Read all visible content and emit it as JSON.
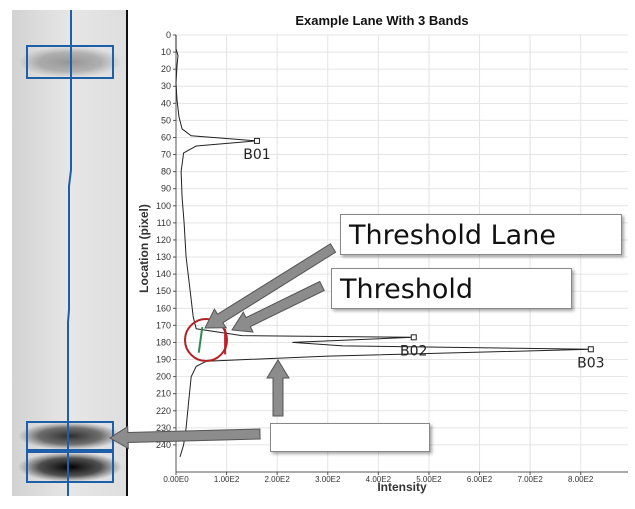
{
  "title": "Example Lane With 3 Bands",
  "colors": {
    "lane_line": "#1f5ea8",
    "trace": "#222222",
    "threshold_lane_mark": "#2e8b57",
    "threshold_mark": "#cc2233",
    "circle": "#b22222",
    "arrow_fill": "#8c8c8c",
    "grid": "#e4e4e4"
  },
  "callouts": {
    "threshold_lane": "Threshold Lane",
    "threshold": "Threshold",
    "empty": ""
  },
  "chart_data": {
    "type": "line",
    "title": "Example Lane With 3 Bands",
    "xlabel": "Intensity",
    "ylabel": "Location (pixel)",
    "xlim": [
      0,
      850
    ],
    "ylim": [
      0,
      250
    ],
    "x_ticks": [
      0,
      100,
      200,
      300,
      400,
      500,
      600,
      700,
      800
    ],
    "x_tick_labels": [
      "0.00E0",
      "1.00E2",
      "2.00E2",
      "3.00E2",
      "4.00E2",
      "5.00E2",
      "6.00E2",
      "7.00E2",
      "8.00E2"
    ],
    "y_ticks": [
      0,
      10,
      20,
      30,
      40,
      50,
      60,
      70,
      80,
      90,
      100,
      110,
      120,
      130,
      140,
      150,
      160,
      170,
      180,
      190,
      200,
      210,
      220,
      230,
      240
    ],
    "y_inverted": true,
    "grid": true,
    "series": [
      {
        "points": [
          [
            0,
            0
          ],
          [
            0,
            8
          ],
          [
            4,
            12
          ],
          [
            2,
            18
          ],
          [
            0,
            28
          ],
          [
            2,
            38
          ],
          [
            6,
            48
          ],
          [
            12,
            55
          ],
          [
            30,
            59
          ],
          [
            160,
            62
          ],
          [
            40,
            65
          ],
          [
            15,
            69
          ],
          [
            10,
            80
          ],
          [
            12,
            95
          ],
          [
            16,
            110
          ],
          [
            20,
            130
          ],
          [
            28,
            150
          ],
          [
            34,
            165
          ],
          [
            40,
            172
          ],
          [
            130,
            176
          ],
          [
            470,
            177
          ],
          [
            230,
            180
          ],
          [
            330,
            182
          ],
          [
            820,
            184
          ],
          [
            300,
            188
          ],
          [
            60,
            191
          ],
          [
            40,
            194
          ],
          [
            30,
            200
          ],
          [
            25,
            215
          ],
          [
            20,
            230
          ],
          [
            15,
            240
          ],
          [
            8,
            247
          ]
        ]
      }
    ],
    "bands": [
      {
        "label": "B01",
        "location": 62,
        "intensity": 160
      },
      {
        "label": "B02",
        "location": 177,
        "intensity": 470
      },
      {
        "label": "B03",
        "location": 184,
        "intensity": 820
      }
    ],
    "threshold_lane_segment": {
      "x_start": 45,
      "x_end": 52,
      "y_start": 171,
      "y_end": 186
    },
    "threshold_segment": {
      "x": 97,
      "y_start": 172,
      "y_end": 187
    }
  },
  "lane_bands": [
    {
      "center": 52,
      "half_height": 16,
      "intensity": 0.35,
      "boxed": true
    },
    {
      "center": 426,
      "half_height": 14,
      "intensity": 0.8,
      "boxed": true
    },
    {
      "center": 457,
      "half_height": 15,
      "intensity": 1.0,
      "boxed": true
    }
  ]
}
